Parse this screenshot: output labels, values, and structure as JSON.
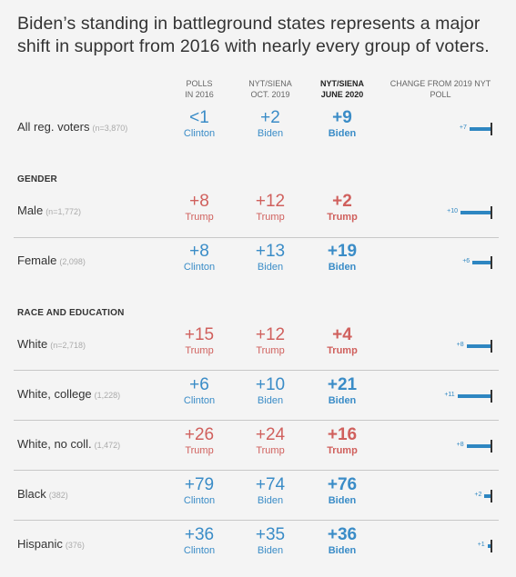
{
  "title": "Biden’s standing in battleground states represents a major shift in support from 2016 with nearly every group of voters.",
  "colors": {
    "clinton_biden": "#3a8cc7",
    "trump": "#d0605d",
    "bar": "#2e86c1"
  },
  "columns": [
    {
      "line1": "POLLS",
      "line2": "IN 2016"
    },
    {
      "line1": "NYT/SIENA",
      "line2": "OCT. 2019"
    },
    {
      "line1": "NYT/SIENA",
      "line2": "JUNE 2020"
    },
    {
      "line1": "CHANGE FROM 2019 NYT",
      "line2": "POLL"
    }
  ],
  "sections": {
    "gender": "GENDER",
    "race": "RACE AND EDUCATION"
  },
  "chart_data": {
    "type": "table",
    "rows": [
      {
        "label": "All reg. voters",
        "n": "(n=3,870)",
        "c2016": {
          "value": "<1",
          "party": "Clinton"
        },
        "c2019": {
          "value": "+2",
          "party": "Biden"
        },
        "c2020": {
          "value": "+9",
          "party": "Biden"
        },
        "change": 7,
        "change_label": "+7"
      },
      {
        "label": "Male",
        "n": "(n=1,772)",
        "c2016": {
          "value": "+8",
          "party": "Trump"
        },
        "c2019": {
          "value": "+12",
          "party": "Trump"
        },
        "c2020": {
          "value": "+2",
          "party": "Trump"
        },
        "change": 10,
        "change_label": "+10"
      },
      {
        "label": "Female",
        "n": "(2,098)",
        "c2016": {
          "value": "+8",
          "party": "Clinton"
        },
        "c2019": {
          "value": "+13",
          "party": "Biden"
        },
        "c2020": {
          "value": "+19",
          "party": "Biden"
        },
        "change": 6,
        "change_label": "+6"
      },
      {
        "label": "White",
        "n": "(n=2,718)",
        "c2016": {
          "value": "+15",
          "party": "Trump"
        },
        "c2019": {
          "value": "+12",
          "party": "Trump"
        },
        "c2020": {
          "value": "+4",
          "party": "Trump"
        },
        "change": 8,
        "change_label": "+8"
      },
      {
        "label": "White, college",
        "n": "(1,228)",
        "c2016": {
          "value": "+6",
          "party": "Clinton"
        },
        "c2019": {
          "value": "+10",
          "party": "Biden"
        },
        "c2020": {
          "value": "+21",
          "party": "Biden"
        },
        "change": 11,
        "change_label": "+11"
      },
      {
        "label": "White, no coll.",
        "n": "(1,472)",
        "c2016": {
          "value": "+26",
          "party": "Trump"
        },
        "c2019": {
          "value": "+24",
          "party": "Trump"
        },
        "c2020": {
          "value": "+16",
          "party": "Trump"
        },
        "change": 8,
        "change_label": "+8"
      },
      {
        "label": "Black",
        "n": "(382)",
        "c2016": {
          "value": "+79",
          "party": "Clinton"
        },
        "c2019": {
          "value": "+74",
          "party": "Biden"
        },
        "c2020": {
          "value": "+76",
          "party": "Biden"
        },
        "change": 2,
        "change_label": "+2"
      },
      {
        "label": "Hispanic",
        "n": "(376)",
        "c2016": {
          "value": "+36",
          "party": "Clinton"
        },
        "c2019": {
          "value": "+35",
          "party": "Biden"
        },
        "c2020": {
          "value": "+36",
          "party": "Biden"
        },
        "change": 1,
        "change_label": "+1"
      }
    ]
  }
}
